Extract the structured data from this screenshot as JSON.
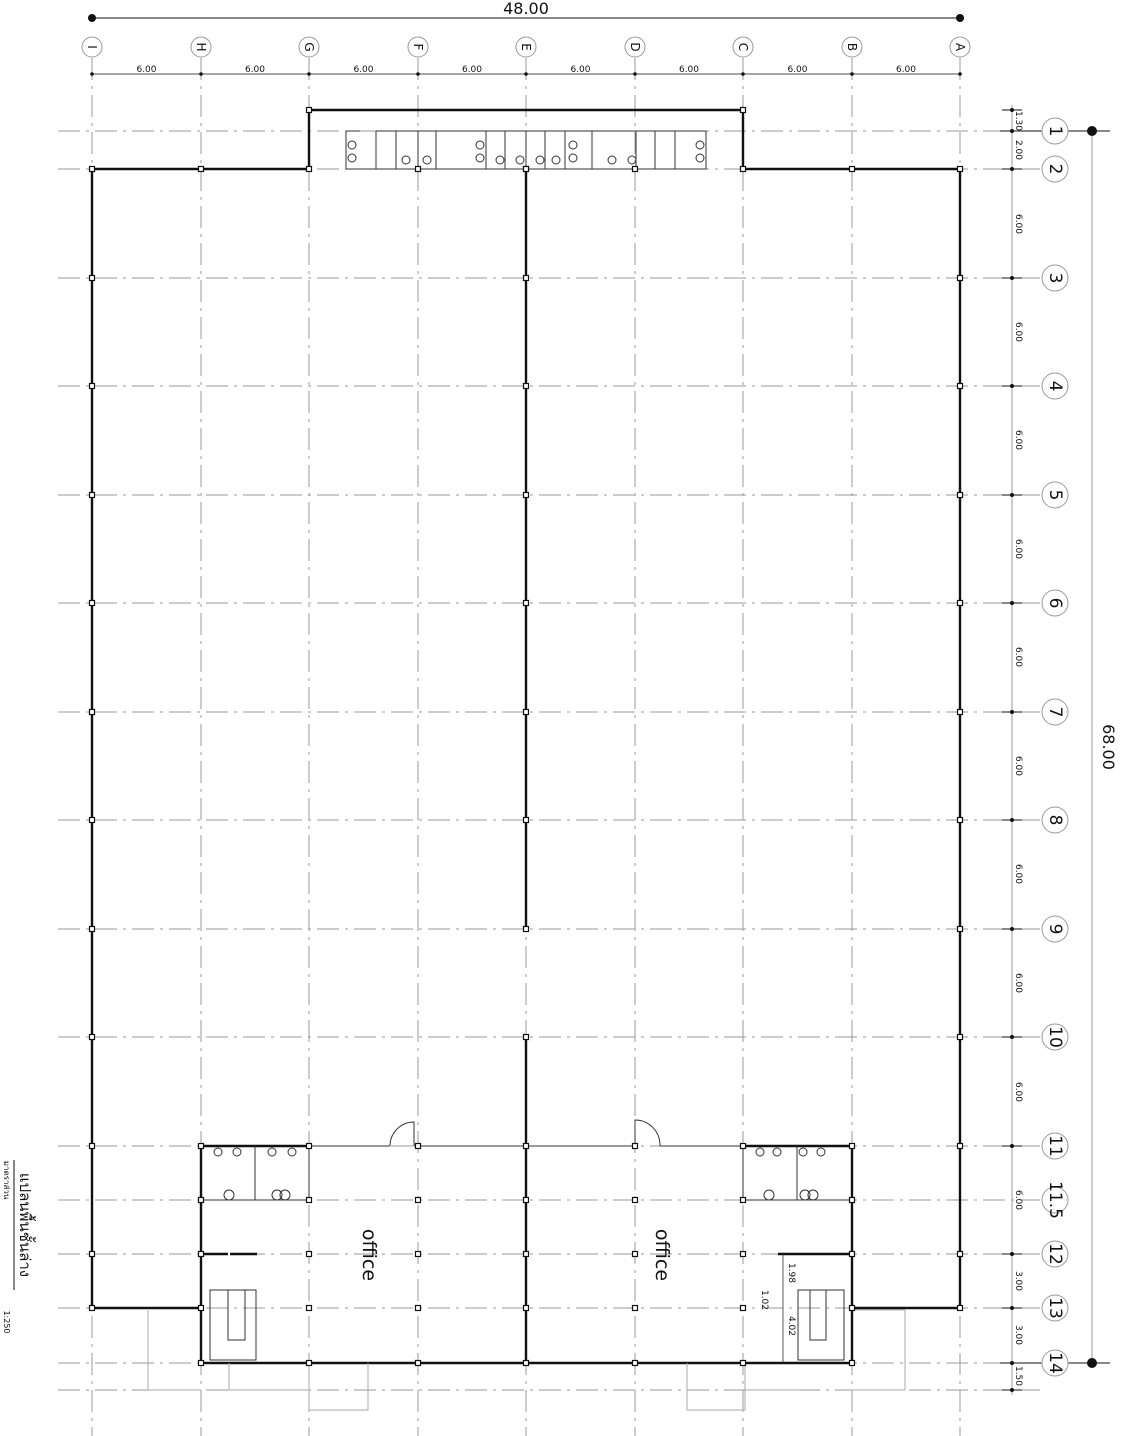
{
  "drawing": {
    "title": "แปลนพื้นชั้นล่าง",
    "scale_label": "มาตราส่วน",
    "scale": "1:250",
    "total_width": "48.00",
    "total_length": "68.00"
  },
  "columns": {
    "labels": [
      "I",
      "H",
      "G",
      "F",
      "E",
      "D",
      "C",
      "B",
      "A"
    ],
    "spacings": [
      "6.00",
      "6.00",
      "6.00",
      "6.00",
      "6.00",
      "6.00",
      "6.00",
      "6.00"
    ]
  },
  "rows": {
    "labels": [
      "1",
      "2",
      "3",
      "4",
      "5",
      "6",
      "7",
      "8",
      "9",
      "10",
      "11",
      "11.5",
      "12",
      "13",
      "14"
    ],
    "spacings": [
      "1.30",
      "2.00",
      "6.00",
      "6.00",
      "6.00",
      "6.00",
      "6.00",
      "6.00",
      "6.00",
      "6.00",
      "6.00",
      "6.00",
      "3.00",
      "3.00",
      "1.50"
    ]
  },
  "rooms": {
    "office_left": "office",
    "office_right": "office"
  },
  "stair_dims": [
    "1.98",
    "1.02",
    "4.02"
  ]
}
